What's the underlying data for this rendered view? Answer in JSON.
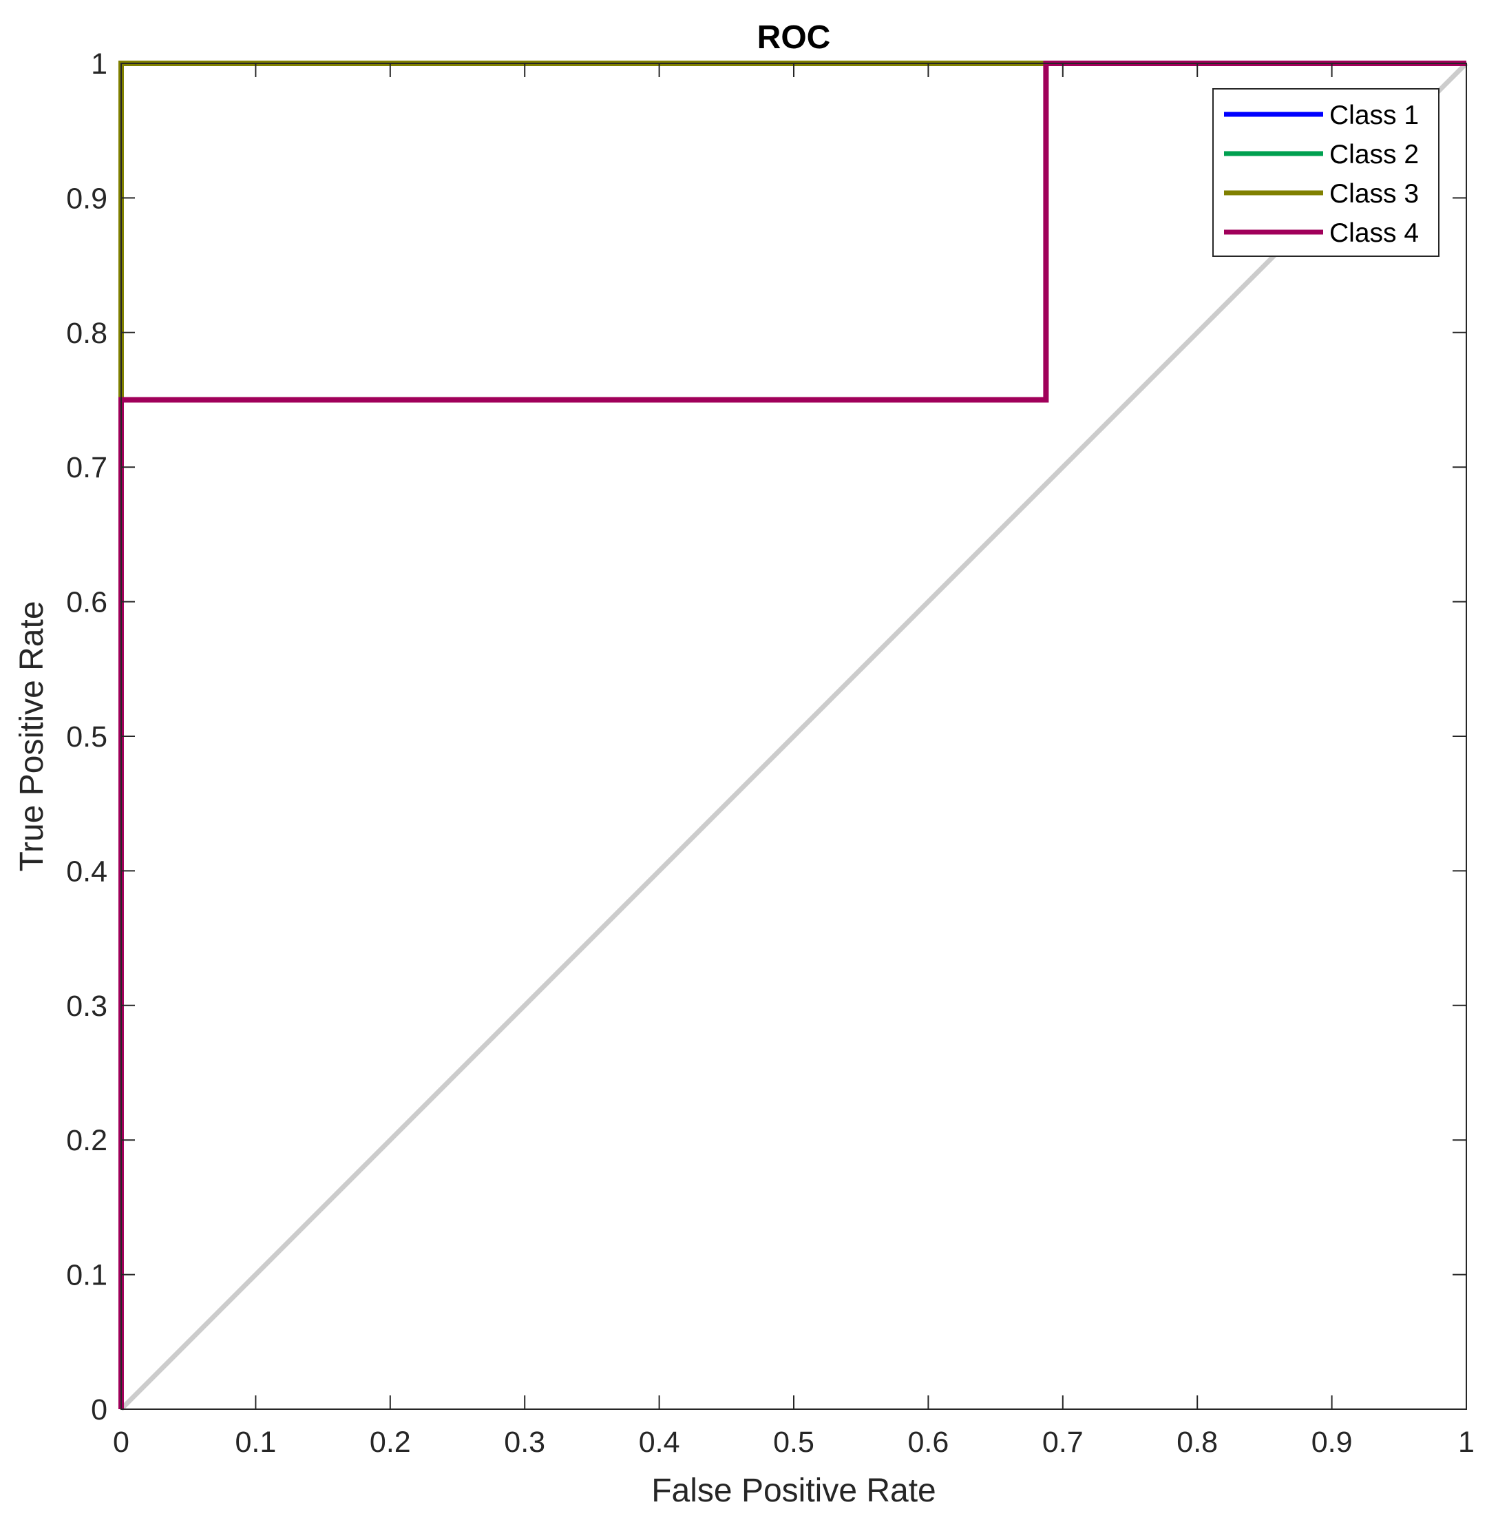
{
  "chart_data": {
    "type": "line",
    "title": "ROC",
    "xlabel": "False Positive Rate",
    "ylabel": "True Positive Rate",
    "xlim": [
      0,
      1
    ],
    "ylim": [
      0,
      1
    ],
    "xticks": [
      "0",
      "0.1",
      "0.2",
      "0.3",
      "0.4",
      "0.5",
      "0.6",
      "0.7",
      "0.8",
      "0.9",
      "1"
    ],
    "yticks": [
      "0",
      "0.1",
      "0.2",
      "0.3",
      "0.4",
      "0.5",
      "0.6",
      "0.7",
      "0.8",
      "0.9",
      "1"
    ],
    "grid": false,
    "legend_position": "top-right",
    "reference_line": {
      "x": [
        0,
        1
      ],
      "y": [
        0,
        1
      ],
      "color": "#cccccc"
    },
    "series": [
      {
        "name": "Class 1",
        "color": "#0000ff",
        "x": [
          0,
          0,
          1
        ],
        "y": [
          0,
          1,
          1
        ]
      },
      {
        "name": "Class 2",
        "color": "#00a050",
        "x": [
          0,
          0,
          1
        ],
        "y": [
          0,
          1,
          1
        ]
      },
      {
        "name": "Class 3",
        "color": "#808000",
        "x": [
          0,
          0,
          1
        ],
        "y": [
          0,
          1,
          1
        ]
      },
      {
        "name": "Class 4",
        "color": "#a0005a",
        "x": [
          0,
          0,
          0.6875,
          0.6875,
          1
        ],
        "y": [
          0,
          0.75,
          0.75,
          1,
          1
        ]
      }
    ]
  }
}
